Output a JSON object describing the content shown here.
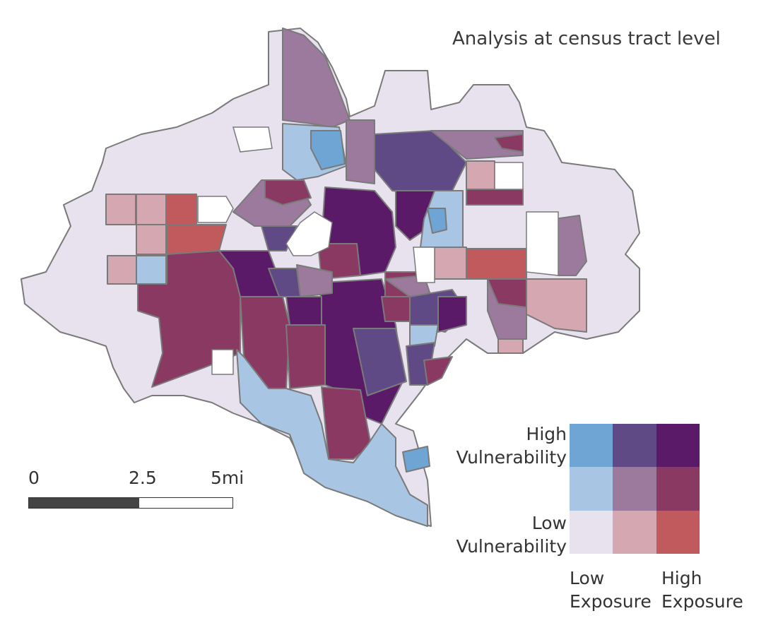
{
  "title": "Analysis at census tract level",
  "scale": {
    "ticks": [
      "0",
      "2.5",
      "5mi"
    ],
    "filled_fraction": 0.54
  },
  "legend": {
    "y_high": [
      "High",
      "Vulnerability"
    ],
    "y_low": [
      "Low",
      "Vulnerability"
    ],
    "x_low": [
      "Low",
      "Exposure"
    ],
    "x_high": [
      "High",
      "Exposure"
    ],
    "matrix": [
      [
        "#6ea5d4",
        "#604a86",
        "#5b1a67"
      ],
      [
        "#a8c6e3",
        "#9c7a9e",
        "#8a3a62"
      ],
      [
        "#e8e2ef",
        "#d5a7b0",
        "#c05a5c"
      ]
    ]
  },
  "colors": {
    "boundary": "#7a7a7a",
    "background": "#ffffff"
  }
}
